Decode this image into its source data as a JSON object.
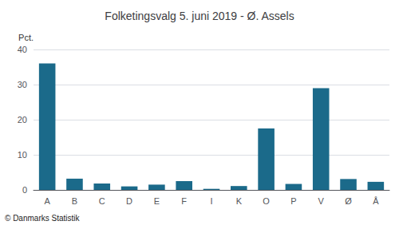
{
  "chart_data": {
    "type": "bar",
    "title": "Folketingsvalg 5. juni 2019 - Ø. Assels",
    "categories": [
      "A",
      "B",
      "C",
      "D",
      "E",
      "F",
      "I",
      "K",
      "O",
      "P",
      "V",
      "Ø",
      "Å"
    ],
    "values": [
      36.0,
      3.2,
      1.8,
      1.0,
      1.5,
      2.5,
      0.3,
      1.1,
      17.5,
      1.7,
      29.0,
      3.1,
      2.3
    ],
    "color": "#1b6a8a",
    "ylabel": "Pct.",
    "ylim": [
      0,
      40
    ],
    "yticks": [
      0,
      10,
      20,
      30,
      40
    ],
    "grid": true,
    "annotations": [
      "© Danmarks Statistik"
    ]
  }
}
